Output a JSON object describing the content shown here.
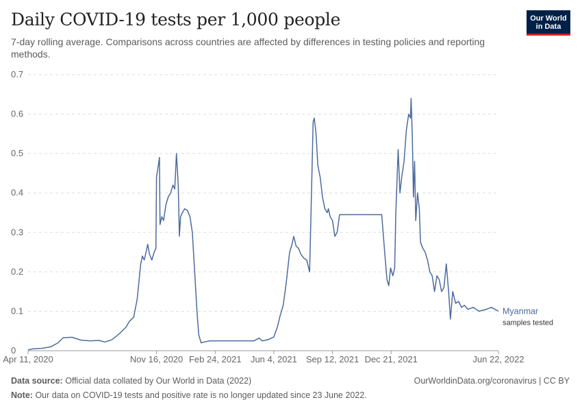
{
  "header": {
    "title": "Daily COVID-19 tests per 1,000 people",
    "subtitle": "7-day rolling average. Comparisons across countries are affected by differences in testing policies and reporting methods."
  },
  "logo": {
    "line1": "Our World",
    "line2": "in Data"
  },
  "footer": {
    "source_label": "Data source:",
    "source_text": "Official data collated by Our World in Data (2022)",
    "note_label": "Note:",
    "note_text": "Our data on COVID-19 tests and positive rate is no longer updated since 23 June 2022.",
    "credit": "OurWorldinData.org/coronavirus | CC BY"
  },
  "colors": {
    "series": "#4c6a9c",
    "logo_bg": "#002147",
    "logo_accent": "#ce261e"
  },
  "chart_data": {
    "type": "line",
    "title": "Daily COVID-19 tests per 1,000 people",
    "subtitle": "7-day rolling average. Comparisons across countries are affected by differences in testing policies and reporting methods.",
    "ylim": [
      0,
      0.7
    ],
    "yticks": [
      0,
      0.1,
      0.2,
      0.3,
      0.4,
      0.5,
      0.6,
      0.7
    ],
    "xlim": [
      "2020-04-11",
      "2022-06-22"
    ],
    "xticks": [
      "2020-04-11",
      "2020-11-16",
      "2021-02-24",
      "2021-06-04",
      "2021-09-12",
      "2021-12-21",
      "2022-06-22"
    ],
    "xtick_labels": [
      "Apr 11, 2020",
      "Nov 16, 2020",
      "Feb 24, 2021",
      "Jun 4, 2021",
      "Sep 12, 2021",
      "Dec 21, 2021",
      "Jun 22, 2022"
    ],
    "grid": "horizontal dashed",
    "series": [
      {
        "name": "Myanmar",
        "sublabel": "samples tested",
        "points": [
          [
            "2020-04-11",
            0.002
          ],
          [
            "2020-04-20",
            0.005
          ],
          [
            "2020-05-05",
            0.006
          ],
          [
            "2020-05-20",
            0.01
          ],
          [
            "2020-06-01",
            0.02
          ],
          [
            "2020-06-10",
            0.033
          ],
          [
            "2020-06-25",
            0.034
          ],
          [
            "2020-07-10",
            0.027
          ],
          [
            "2020-07-25",
            0.025
          ],
          [
            "2020-08-10",
            0.026
          ],
          [
            "2020-08-20",
            0.022
          ],
          [
            "2020-09-01",
            0.028
          ],
          [
            "2020-09-15",
            0.045
          ],
          [
            "2020-09-25",
            0.06
          ],
          [
            "2020-10-01",
            0.075
          ],
          [
            "2020-10-08",
            0.085
          ],
          [
            "2020-10-14",
            0.13
          ],
          [
            "2020-10-20",
            0.22
          ],
          [
            "2020-10-23",
            0.24
          ],
          [
            "2020-10-26",
            0.23
          ],
          [
            "2020-10-30",
            0.255
          ],
          [
            "2020-11-01",
            0.27
          ],
          [
            "2020-11-04",
            0.245
          ],
          [
            "2020-11-08",
            0.23
          ],
          [
            "2020-11-12",
            0.25
          ],
          [
            "2020-11-15",
            0.26
          ],
          [
            "2020-11-16",
            0.44
          ],
          [
            "2020-11-19",
            0.47
          ],
          [
            "2020-11-21",
            0.49
          ],
          [
            "2020-11-22",
            0.32
          ],
          [
            "2020-11-25",
            0.34
          ],
          [
            "2020-11-28",
            0.33
          ],
          [
            "2020-12-02",
            0.37
          ],
          [
            "2020-12-06",
            0.39
          ],
          [
            "2020-12-10",
            0.4
          ],
          [
            "2020-12-14",
            0.42
          ],
          [
            "2020-12-17",
            0.41
          ],
          [
            "2020-12-20",
            0.5
          ],
          [
            "2020-12-23",
            0.42
          ],
          [
            "2020-12-25",
            0.29
          ],
          [
            "2020-12-27",
            0.34
          ],
          [
            "2020-12-30",
            0.35
          ],
          [
            "2021-01-03",
            0.36
          ],
          [
            "2021-01-08",
            0.355
          ],
          [
            "2021-01-12",
            0.34
          ],
          [
            "2021-01-16",
            0.3
          ],
          [
            "2021-01-20",
            0.2
          ],
          [
            "2021-01-24",
            0.1
          ],
          [
            "2021-01-27",
            0.04
          ],
          [
            "2021-01-31",
            0.02
          ],
          [
            "2021-02-05",
            0.022
          ],
          [
            "2021-02-15",
            0.025
          ],
          [
            "2021-03-15",
            0.025
          ],
          [
            "2021-04-10",
            0.025
          ],
          [
            "2021-05-01",
            0.025
          ],
          [
            "2021-05-10",
            0.032
          ],
          [
            "2021-05-15",
            0.025
          ],
          [
            "2021-05-25",
            0.028
          ],
          [
            "2021-06-04",
            0.035
          ],
          [
            "2021-06-10",
            0.06
          ],
          [
            "2021-06-15",
            0.09
          ],
          [
            "2021-06-20",
            0.115
          ],
          [
            "2021-06-25",
            0.17
          ],
          [
            "2021-07-01",
            0.25
          ],
          [
            "2021-07-05",
            0.27
          ],
          [
            "2021-07-08",
            0.29
          ],
          [
            "2021-07-12",
            0.265
          ],
          [
            "2021-07-16",
            0.26
          ],
          [
            "2021-07-20",
            0.245
          ],
          [
            "2021-07-25",
            0.235
          ],
          [
            "2021-07-30",
            0.23
          ],
          [
            "2021-08-04",
            0.2
          ],
          [
            "2021-08-08",
            0.45
          ],
          [
            "2021-08-10",
            0.58
          ],
          [
            "2021-08-12",
            0.59
          ],
          [
            "2021-08-15",
            0.55
          ],
          [
            "2021-08-18",
            0.47
          ],
          [
            "2021-08-22",
            0.44
          ],
          [
            "2021-08-26",
            0.39
          ],
          [
            "2021-08-30",
            0.36
          ],
          [
            "2021-09-03",
            0.35
          ],
          [
            "2021-09-05",
            0.36
          ],
          [
            "2021-09-08",
            0.34
          ],
          [
            "2021-09-12",
            0.33
          ],
          [
            "2021-09-16",
            0.29
          ],
          [
            "2021-09-20",
            0.3
          ],
          [
            "2021-09-24",
            0.345
          ],
          [
            "2021-10-15",
            0.345
          ],
          [
            "2021-11-15",
            0.345
          ],
          [
            "2021-12-01",
            0.345
          ],
          [
            "2021-12-05",
            0.345
          ],
          [
            "2021-12-10",
            0.25
          ],
          [
            "2021-12-14",
            0.18
          ],
          [
            "2021-12-17",
            0.165
          ],
          [
            "2021-12-20",
            0.21
          ],
          [
            "2021-12-24",
            0.19
          ],
          [
            "2021-12-27",
            0.21
          ],
          [
            "2021-12-29",
            0.35
          ],
          [
            "2022-01-02",
            0.51
          ],
          [
            "2022-01-05",
            0.4
          ],
          [
            "2022-01-08",
            0.44
          ],
          [
            "2022-01-12",
            0.48
          ],
          [
            "2022-01-16",
            0.56
          ],
          [
            "2022-01-20",
            0.6
          ],
          [
            "2022-01-23",
            0.59
          ],
          [
            "2022-01-24",
            0.64
          ],
          [
            "2022-01-26",
            0.55
          ],
          [
            "2022-01-28",
            0.39
          ],
          [
            "2022-01-30",
            0.48
          ],
          [
            "2022-02-01",
            0.33
          ],
          [
            "2022-02-04",
            0.4
          ],
          [
            "2022-02-07",
            0.36
          ],
          [
            "2022-02-09",
            0.275
          ],
          [
            "2022-02-13",
            0.26
          ],
          [
            "2022-02-17",
            0.25
          ],
          [
            "2022-02-21",
            0.23
          ],
          [
            "2022-02-25",
            0.2
          ],
          [
            "2022-03-01",
            0.19
          ],
          [
            "2022-03-05",
            0.15
          ],
          [
            "2022-03-09",
            0.19
          ],
          [
            "2022-03-13",
            0.18
          ],
          [
            "2022-03-17",
            0.15
          ],
          [
            "2022-03-21",
            0.16
          ],
          [
            "2022-03-25",
            0.22
          ],
          [
            "2022-03-29",
            0.15
          ],
          [
            "2022-04-01",
            0.08
          ],
          [
            "2022-04-05",
            0.15
          ],
          [
            "2022-04-10",
            0.12
          ],
          [
            "2022-04-15",
            0.125
          ],
          [
            "2022-04-20",
            0.11
          ],
          [
            "2022-04-25",
            0.115
          ],
          [
            "2022-05-01",
            0.105
          ],
          [
            "2022-05-10",
            0.11
          ],
          [
            "2022-05-20",
            0.1
          ],
          [
            "2022-06-01",
            0.105
          ],
          [
            "2022-06-10",
            0.11
          ],
          [
            "2022-06-22",
            0.1
          ]
        ]
      }
    ]
  }
}
